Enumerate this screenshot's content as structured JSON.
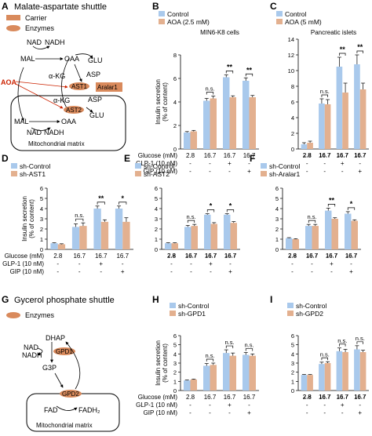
{
  "colors": {
    "control": "#a9c9ec",
    "treat": "#e3b08f",
    "enzyme": "#d98a5c",
    "aoa": "#cc2200",
    "axis": "#000000"
  },
  "panel_a": {
    "letter": "A",
    "title": "Malate-aspartate shuttle",
    "legend": {
      "carrier": "Carrier",
      "enzymes": "Enzymes"
    },
    "labels": {
      "nad": "NAD",
      "nadh": "NADH",
      "mal": "MAL",
      "oaa": "OAA",
      "glu": "GLU",
      "akg": "α-KG",
      "asp": "ASP",
      "ast1": "AST1",
      "aralar1": "Aralar1",
      "ast2": "AST2",
      "aoa": "AOA",
      "mal2": "MAL",
      "oaa2": "OAA",
      "akg2": "α-KG",
      "asp2": "ASP",
      "glu2": "GLU",
      "nad2": "NAD",
      "nadh2": "NADH",
      "matrix": "Mitochondrial matrix"
    }
  },
  "panel_g": {
    "letter": "G",
    "title": "Gycerol phosphate shuttle",
    "legend": {
      "enzymes": "Enzymes"
    },
    "labels": {
      "dhap": "DHAP",
      "nad": "NAD",
      "nadh": "NADH",
      "gpd1": "GPD1",
      "g3p": "G3P",
      "gpd2": "GPD2",
      "fad": "FAD",
      "fadh": "FADH₂",
      "matrix": "Mitochondrial matrix"
    }
  },
  "table": {
    "rows": [
      "Glucose (mM)",
      "GLP-1 (10 nM)",
      "GIP (10 nM)"
    ],
    "cols": [
      [
        "2.8",
        "-",
        "-"
      ],
      [
        "16.7",
        "-",
        "-"
      ],
      [
        "16.7",
        "+",
        "-"
      ],
      [
        "16.7",
        "-",
        "+"
      ]
    ]
  },
  "chart_data": [
    {
      "type": "bar",
      "letter": "B",
      "subtitle": "MIN6-K8 cells",
      "ylabel": "Insulin secretion",
      "ylabel2": "(% of content)",
      "ylim": [
        0,
        8
      ],
      "ticks": [
        0,
        2,
        4,
        6,
        8
      ],
      "categories": [
        "2.8",
        "16.7",
        "16.7",
        "16.7"
      ],
      "series": [
        {
          "name": "Control",
          "values": [
            1.4,
            4.1,
            6.1,
            5.8
          ],
          "errors": [
            0.08,
            0.2,
            0.2,
            0.25
          ]
        },
        {
          "name": "AOA (2.5 mM)",
          "values": [
            1.5,
            4.3,
            4.4,
            4.4
          ],
          "errors": [
            0.08,
            0.2,
            0.12,
            0.15
          ]
        }
      ],
      "sig": [
        {
          "pair": 1,
          "label": "n.s."
        },
        {
          "pair": 2,
          "label": "**"
        },
        {
          "pair": 3,
          "label": "**"
        }
      ]
    },
    {
      "type": "bar",
      "letter": "C",
      "subtitle": "Pancreatic islets",
      "ylabel": "",
      "ylabel2": "",
      "ylim": [
        0,
        14
      ],
      "ticks": [
        0,
        2,
        4,
        6,
        8,
        10,
        12,
        14
      ],
      "categories": [
        "2.8",
        "16.7",
        "16.7",
        "16.7"
      ],
      "series": [
        {
          "name": "Control",
          "values": [
            0.6,
            5.8,
            10.5,
            10.8
          ],
          "errors": [
            0.2,
            0.6,
            1.2,
            1.2
          ]
        },
        {
          "name": "AOA (5 mM)",
          "values": [
            0.8,
            5.7,
            7.2,
            7.6
          ],
          "errors": [
            0.2,
            0.6,
            1.2,
            0.8
          ]
        }
      ],
      "sig": [
        {
          "pair": 1,
          "label": "n.s."
        },
        {
          "pair": 2,
          "label": "**"
        },
        {
          "pair": 3,
          "label": "**"
        }
      ]
    },
    {
      "type": "bar",
      "letter": "D",
      "subtitle": "",
      "ylabel": "Insulin secretion",
      "ylabel2": "(% of content)",
      "ylim": [
        0,
        6
      ],
      "ticks": [
        0,
        1,
        2,
        3,
        4,
        5,
        6
      ],
      "categories": [
        "2.8",
        "16.7",
        "16.7",
        "16.7"
      ],
      "series": [
        {
          "name": "sh-Control",
          "values": [
            0.6,
            2.2,
            4.0,
            4.0
          ],
          "errors": [
            0.05,
            0.3,
            0.25,
            0.25
          ]
        },
        {
          "name": "sh-AST1",
          "values": [
            0.5,
            2.3,
            2.7,
            2.7
          ],
          "errors": [
            0.05,
            0.3,
            0.2,
            0.4
          ]
        }
      ],
      "sig": [
        {
          "pair": 1,
          "label": "n.s."
        },
        {
          "pair": 2,
          "label": "**"
        },
        {
          "pair": 3,
          "label": "*"
        }
      ]
    },
    {
      "type": "bar",
      "letter": "E",
      "subtitle": "",
      "ylabel": "",
      "ylabel2": "",
      "ylim": [
        0,
        6
      ],
      "ticks": [
        0,
        1,
        2,
        3,
        4,
        5,
        6
      ],
      "categories": [
        "2.8",
        "16.7",
        "16.7",
        "16.7"
      ],
      "series": [
        {
          "name": "sh-Control",
          "values": [
            0.6,
            2.2,
            3.4,
            3.4
          ],
          "errors": [
            0.05,
            0.15,
            0.1,
            0.1
          ]
        },
        {
          "name": "sh-AST2",
          "values": [
            0.6,
            2.3,
            2.5,
            2.6
          ],
          "errors": [
            0.05,
            0.15,
            0.12,
            0.12
          ]
        }
      ],
      "sig": [
        {
          "pair": 1,
          "label": "n.s."
        },
        {
          "pair": 2,
          "label": "*"
        },
        {
          "pair": 3,
          "label": "*"
        }
      ]
    },
    {
      "type": "bar",
      "letter": "F",
      "subtitle": "",
      "ylabel": "",
      "ylabel2": "",
      "ylim": [
        0,
        6
      ],
      "ticks": [
        0,
        1,
        2,
        3,
        4,
        5,
        6
      ],
      "categories": [
        "2.8",
        "16.7",
        "16.7",
        "16.7"
      ],
      "series": [
        {
          "name": "sh-Control",
          "values": [
            1.1,
            2.3,
            3.8,
            3.5
          ],
          "errors": [
            0.05,
            0.15,
            0.25,
            0.2
          ]
        },
        {
          "name": "sh-Aralar1",
          "values": [
            1.0,
            2.3,
            3.0,
            2.8
          ],
          "errors": [
            0.05,
            0.15,
            0.1,
            0.1
          ]
        }
      ],
      "sig": [
        {
          "pair": 1,
          "label": "n.s."
        },
        {
          "pair": 2,
          "label": "**"
        },
        {
          "pair": 3,
          "label": "*"
        }
      ]
    },
    {
      "type": "bar",
      "letter": "H",
      "subtitle": "",
      "ylabel": "Insulin secretion",
      "ylabel2": "(% of content)",
      "ylim": [
        0,
        6
      ],
      "ticks": [
        0,
        1,
        2,
        3,
        4,
        5,
        6
      ],
      "categories": [
        "2.8",
        "16.7",
        "16.7",
        "16.7"
      ],
      "series": [
        {
          "name": "sh-Control",
          "values": [
            1.1,
            2.7,
            4.1,
            3.9
          ],
          "errors": [
            0.05,
            0.25,
            0.35,
            0.25
          ]
        },
        {
          "name": "sh-GPD1",
          "values": [
            1.2,
            2.8,
            3.8,
            3.8
          ],
          "errors": [
            0.05,
            0.2,
            0.3,
            0.2
          ]
        }
      ],
      "sig": [
        {
          "pair": 1,
          "label": "n.s."
        },
        {
          "pair": 2,
          "label": "n.s."
        },
        {
          "pair": 3,
          "label": "n.s."
        }
      ]
    },
    {
      "type": "bar",
      "letter": "I",
      "subtitle": "",
      "ylabel": "",
      "ylabel2": "",
      "ylim": [
        0,
        6
      ],
      "ticks": [
        0,
        1,
        2,
        3,
        4,
        5,
        6
      ],
      "categories": [
        "2.8",
        "16.7",
        "16.7",
        "16.7"
      ],
      "series": [
        {
          "name": "sh-Control",
          "values": [
            1.7,
            2.9,
            4.3,
            4.5
          ],
          "errors": [
            0.05,
            0.2,
            0.35,
            0.4
          ]
        },
        {
          "name": "sh-GPD2",
          "values": [
            1.7,
            3.0,
            4.2,
            4.2
          ],
          "errors": [
            0.05,
            0.15,
            0.3,
            0.2
          ]
        }
      ],
      "sig": [
        {
          "pair": 1,
          "label": "n.s."
        },
        {
          "pair": 2,
          "label": "n.s."
        },
        {
          "pair": 3,
          "label": "n.s."
        }
      ]
    }
  ]
}
